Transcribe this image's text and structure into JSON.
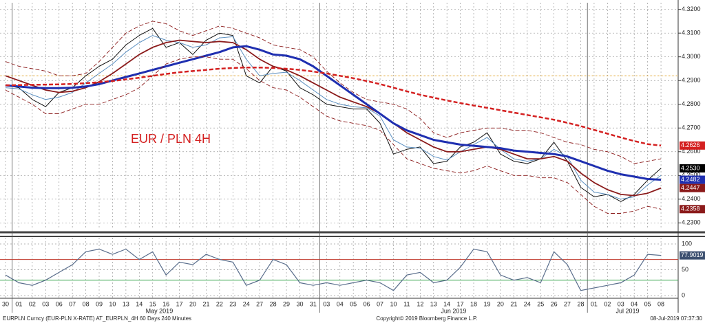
{
  "chart_data": {
    "type": "line",
    "annotation": "EUR / PLN 4H",
    "categories": [
      "30",
      "01",
      "02",
      "03",
      "06",
      "07",
      "08",
      "09",
      "10",
      "13",
      "14",
      "15",
      "16",
      "17",
      "20",
      "21",
      "22",
      "23",
      "24",
      "27",
      "28",
      "29",
      "30",
      "31",
      "03",
      "04",
      "05",
      "06",
      "07",
      "10",
      "11",
      "12",
      "13",
      "14",
      "17",
      "18",
      "19",
      "20",
      "21",
      "24",
      "25",
      "26",
      "27",
      "28",
      "01",
      "02",
      "03",
      "04",
      "05",
      "08"
    ],
    "months": [
      "May 2019",
      "Jun 2019",
      "Jul 2019"
    ],
    "ylim": [
      4.2272,
      4.3228
    ],
    "yticks": [
      {
        "value": 4.23,
        "label": "4.2300"
      },
      {
        "value": 4.24,
        "label": "4.2400"
      },
      {
        "value": 4.25,
        "label": "4.2500"
      },
      {
        "value": 4.26,
        "label": "4.2600"
      },
      {
        "value": 4.27,
        "label": "4.2700"
      },
      {
        "value": 4.28,
        "label": "4.2800"
      },
      {
        "value": 4.29,
        "label": "4.2900"
      },
      {
        "value": 4.3,
        "label": "4.3000"
      },
      {
        "value": 4.31,
        "label": "4.3100"
      },
      {
        "value": 4.32,
        "label": "4.3200"
      }
    ],
    "grid": true,
    "reference_line": {
      "value": 4.292,
      "color": "#e0a020"
    },
    "series": [
      {
        "name": "EURPLN",
        "color": "#111111",
        "width": 1,
        "dash": false,
        "values": [
          4.288,
          4.287,
          4.282,
          4.279,
          4.285,
          4.287,
          4.292,
          4.296,
          4.299,
          4.305,
          4.309,
          4.312,
          4.304,
          4.306,
          4.301,
          4.307,
          4.31,
          4.309,
          4.292,
          4.289,
          4.296,
          4.294,
          4.287,
          4.284,
          4.28,
          4.279,
          4.278,
          4.278,
          4.272,
          4.259,
          4.261,
          4.262,
          4.255,
          4.256,
          4.262,
          4.264,
          4.268,
          4.259,
          4.256,
          4.255,
          4.257,
          4.264,
          4.256,
          4.245,
          4.241,
          4.242,
          4.239,
          4.242,
          4.248,
          4.253
        ],
        "tag": {
          "value": 4.253,
          "label": "4.2530",
          "color": "#000000"
        }
      },
      {
        "name": "MA short",
        "color": "#5b8fc0",
        "width": 1,
        "dash": false,
        "values": [
          4.287,
          4.2865,
          4.284,
          4.282,
          4.283,
          4.285,
          4.289,
          4.293,
          4.297,
          4.302,
          4.306,
          4.309,
          4.307,
          4.306,
          4.304,
          4.305,
          4.308,
          4.3085,
          4.299,
          4.292,
          4.293,
          4.2935,
          4.29,
          4.286,
          4.282,
          4.28,
          4.279,
          4.2785,
          4.275,
          4.265,
          4.262,
          4.2615,
          4.258,
          4.2565,
          4.26,
          4.263,
          4.266,
          4.261,
          4.257,
          4.256,
          4.257,
          4.261,
          4.258,
          4.248,
          4.243,
          4.242,
          4.24,
          4.241,
          4.246,
          4.25
        ]
      },
      {
        "name": "MA medium",
        "color": "#8b1a1a",
        "width": 1.8,
        "dash": false,
        "values": [
          4.292,
          4.29,
          4.288,
          4.286,
          4.285,
          4.2855,
          4.287,
          4.2895,
          4.293,
          4.297,
          4.301,
          4.304,
          4.306,
          4.307,
          4.3065,
          4.306,
          4.3065,
          4.306,
          4.303,
          4.299,
          4.296,
          4.2945,
          4.292,
          4.289,
          4.286,
          4.283,
          4.281,
          4.279,
          4.276,
          4.272,
          4.268,
          4.265,
          4.262,
          4.26,
          4.26,
          4.261,
          4.262,
          4.261,
          4.259,
          4.257,
          4.257,
          4.258,
          4.256,
          4.251,
          4.247,
          4.244,
          4.242,
          4.2415,
          4.2425,
          4.2447
        ],
        "tag": {
          "value": 4.2447,
          "label": "4.2447",
          "color": "#8b1a1a"
        }
      },
      {
        "name": "MA long",
        "color": "#1f2fb0",
        "width": 3,
        "dash": false,
        "values": [
          4.288,
          4.2875,
          4.287,
          4.2868,
          4.2868,
          4.287,
          4.2875,
          4.2885,
          4.29,
          4.2915,
          4.293,
          4.2945,
          4.296,
          4.2975,
          4.299,
          4.3005,
          4.302,
          4.304,
          4.3045,
          4.303,
          4.301,
          4.3005,
          4.299,
          4.296,
          4.292,
          4.288,
          4.284,
          4.28,
          4.276,
          4.272,
          4.269,
          4.267,
          4.265,
          4.264,
          4.263,
          4.2625,
          4.262,
          4.2615,
          4.2605,
          4.26,
          4.2595,
          4.259,
          4.258,
          4.256,
          4.254,
          4.252,
          4.2505,
          4.2495,
          4.2485,
          4.2482
        ],
        "tag": {
          "value": 4.2482,
          "label": "4.2482",
          "color": "#1f2fb0"
        }
      },
      {
        "name": "MA 200",
        "color": "#d42020",
        "width": 2.5,
        "dash": true,
        "values": [
          4.288,
          4.2881,
          4.2882,
          4.2883,
          4.2884,
          4.2886,
          4.2889,
          4.2893,
          4.2898,
          4.2905,
          4.2912,
          4.292,
          4.2928,
          4.2935,
          4.294,
          4.2945,
          4.295,
          4.2953,
          4.2955,
          4.2955,
          4.2953,
          4.295,
          4.2945,
          4.2938,
          4.293,
          4.292,
          4.291,
          4.2898,
          4.2885,
          4.287,
          4.2855,
          4.284,
          4.2828,
          4.2816,
          4.2805,
          4.2795,
          4.2785,
          4.2775,
          4.2765,
          4.2755,
          4.2745,
          4.2735,
          4.2722,
          4.2708,
          4.2692,
          4.2676,
          4.266,
          4.2645,
          4.2632,
          4.2626
        ],
        "tag": {
          "value": 4.2626,
          "label": "4.2626",
          "color": "#d42020"
        }
      },
      {
        "name": "Upper band",
        "color": "#8b1a1a",
        "width": 0.9,
        "dash": true,
        "values": [
          4.298,
          4.296,
          4.295,
          4.294,
          4.292,
          4.292,
          4.293,
          4.298,
          4.304,
          4.31,
          4.313,
          4.315,
          4.314,
          4.311,
          4.309,
          4.311,
          4.313,
          4.312,
          4.31,
          4.308,
          4.305,
          4.304,
          4.303,
          4.3,
          4.294,
          4.289,
          4.285,
          4.282,
          4.281,
          4.28,
          4.278,
          4.274,
          4.268,
          4.266,
          4.268,
          4.269,
          4.27,
          4.27,
          4.269,
          4.269,
          4.268,
          4.266,
          4.264,
          4.263,
          4.261,
          4.26,
          4.258,
          4.255,
          4.256,
          4.257
        ]
      },
      {
        "name": "Lower band",
        "color": "#8b1a1a",
        "width": 0.9,
        "dash": true,
        "values": [
          4.286,
          4.283,
          4.28,
          4.276,
          4.276,
          4.278,
          4.28,
          4.28,
          4.282,
          4.284,
          4.287,
          4.292,
          4.297,
          4.299,
          4.3,
          4.3,
          4.299,
          4.299,
          4.295,
          4.29,
          4.287,
          4.286,
          4.283,
          4.279,
          4.275,
          4.273,
          4.272,
          4.271,
          4.269,
          4.263,
          4.257,
          4.255,
          4.253,
          4.252,
          4.251,
          4.252,
          4.254,
          4.252,
          4.25,
          4.25,
          4.249,
          4.249,
          4.247,
          4.242,
          4.237,
          4.234,
          4.234,
          4.235,
          4.237,
          4.2358
        ],
        "tag": {
          "value": 4.2358,
          "label": "4.2358",
          "color": "#8b1a1a"
        }
      }
    ],
    "oscillator": {
      "ylim": [
        -5,
        112
      ],
      "yticks": [
        0,
        50,
        100
      ],
      "levels": [
        {
          "value": 70,
          "color": "#c0392b"
        },
        {
          "value": 30,
          "color": "#2ea043"
        }
      ],
      "series": {
        "name": "RSI",
        "color": "#5a6e8c",
        "values": [
          40,
          25,
          20,
          30,
          45,
          60,
          85,
          90,
          80,
          90,
          70,
          85,
          40,
          65,
          60,
          80,
          70,
          65,
          20,
          30,
          70,
          60,
          25,
          20,
          25,
          20,
          25,
          30,
          25,
          10,
          40,
          45,
          25,
          30,
          55,
          90,
          85,
          40,
          30,
          35,
          25,
          85,
          60,
          10,
          15,
          20,
          25,
          40,
          80,
          78
        ],
        "tag": {
          "value": 77.9019,
          "label": "77.9019",
          "color": "#3c5070"
        }
      }
    },
    "footer": {
      "left": "EURPLN Curncy (EUR-PLN X-RATE) AT_EURPLN_4H 60 Days 240 Minutes",
      "center": "Copyright© 2019 Bloomberg Finance L.P.",
      "right": "08-Jul-2019 07:37:30"
    }
  }
}
